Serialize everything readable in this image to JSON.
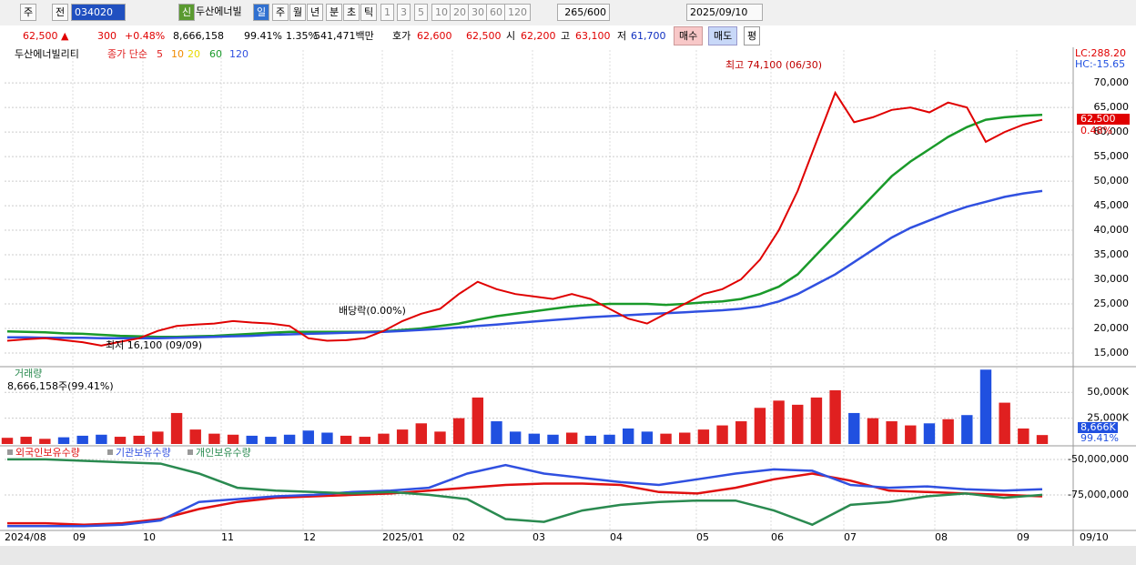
{
  "toolbar": [
    "주",
    "전",
    "034020",
    "신",
    "두산에너빌",
    "일",
    "주",
    "월",
    "년",
    "분",
    "초",
    "틱",
    "1",
    "3",
    "5",
    "10",
    "20",
    "30",
    "60",
    "120",
    "265/600",
    "2025/09/10"
  ],
  "infobar": [
    "62,500 ▲",
    "300",
    "+0.48%",
    "8,666,158",
    "99.41%",
    "1.35%",
    "541,471백만",
    "호가",
    "62,600",
    "62,500",
    "시",
    "62,200",
    "고",
    "63,100",
    "저",
    "61,700",
    "매수",
    "매도",
    "평"
  ],
  "x_labels": [
    "2024/08",
    "09",
    "10",
    "11",
    "12",
    "2025/01",
    "02",
    "03",
    "04",
    "05",
    "06",
    "07",
    "08",
    "09",
    "09/10"
  ],
  "chart_data": [
    {
      "type": "line",
      "name": "두산에너빌리티",
      "legend_label": "종가 단순",
      "ma_legend": [
        "5",
        "10",
        "20"
      ],
      "ma_legend_colors": [
        "#e02020",
        "#f08a00",
        "#e8d800"
      ],
      "annotations": [
        "최고 74,100 (06/30)",
        "최저 16,100 (09/09)",
        "배당락(0.00%)"
      ],
      "right_labels": [
        "LC:288.20",
        "HC:-15.65",
        "62,500",
        "0.48%"
      ],
      "color": "#e00000",
      "values": [
        17500,
        17800,
        18000,
        17600,
        17200,
        16500,
        17300,
        18000,
        19500,
        20500,
        20800,
        21000,
        21500,
        21200,
        21000,
        20500,
        18000,
        17500,
        17600,
        18000,
        19500,
        21500,
        23000,
        24000,
        27000,
        29500,
        28000,
        27000,
        26500,
        26000,
        27000,
        26000,
        24000,
        22000,
        21000,
        23000,
        25000,
        27000,
        28000,
        30000,
        34000,
        40000,
        48000,
        58000,
        68000,
        62000,
        63000,
        64500,
        65000,
        64000,
        66000,
        65000,
        58000,
        60000,
        61500,
        62500
      ],
      "series": [
        {
          "name": "60",
          "color": "#1a9a2a",
          "values": [
            19400,
            19300,
            19200,
            19000,
            18900,
            18700,
            18500,
            18400,
            18300,
            18300,
            18400,
            18500,
            18700,
            18900,
            19100,
            19300,
            19300,
            19300,
            19300,
            19300,
            19400,
            19700,
            20000,
            20500,
            21000,
            21800,
            22500,
            23000,
            23500,
            24000,
            24500,
            24800,
            25000,
            25000,
            25000,
            24800,
            25000,
            25300,
            25500,
            26000,
            27000,
            28500,
            31000,
            35000,
            39000,
            43000,
            47000,
            51000,
            54000,
            56500,
            59000,
            61000,
            62500,
            63000,
            63300,
            63500
          ]
        },
        {
          "name": "120",
          "color": "#3050e0",
          "values": [
            18200,
            18200,
            18100,
            18100,
            18100,
            18000,
            18000,
            18000,
            18000,
            18100,
            18200,
            18300,
            18400,
            18500,
            18700,
            18800,
            18900,
            19000,
            19100,
            19200,
            19300,
            19500,
            19700,
            19900,
            20200,
            20500,
            20800,
            21100,
            21400,
            21700,
            22000,
            22300,
            22500,
            22700,
            22900,
            23100,
            23300,
            23500,
            23700,
            24000,
            24500,
            25500,
            27000,
            29000,
            31000,
            33500,
            36000,
            38500,
            40500,
            42000,
            43500,
            44800,
            45800,
            46800,
            47500,
            48000
          ]
        }
      ],
      "ylim": [
        12400,
        76700
      ],
      "yticks": [
        {
          "value": 15000,
          "label": "15,000"
        },
        {
          "value": 20000,
          "label": "20,000"
        },
        {
          "value": 25000,
          "label": "25,000"
        },
        {
          "value": 30000,
          "label": "30,000"
        },
        {
          "value": 35000,
          "label": "35,000"
        },
        {
          "value": 40000,
          "label": "40,000"
        },
        {
          "value": 45000,
          "label": "45,000"
        },
        {
          "value": 50000,
          "label": "50,000"
        },
        {
          "value": 55000,
          "label": "55,000"
        },
        {
          "value": 60000,
          "label": "60,000"
        },
        {
          "value": 65000,
          "label": "65,000"
        },
        {
          "value": 70000,
          "label": "70,000"
        }
      ],
      "grid": true
    },
    {
      "type": "bar",
      "name": "거래량",
      "subtitle": "8,666,158주(99.41%)",
      "right_labels": [
        "8,666K",
        "99.41%"
      ],
      "up_color": "#e02020",
      "down_color": "#2050e0",
      "values": [
        6000,
        7000,
        5000,
        6500,
        8000,
        9000,
        7000,
        8000,
        12000,
        30000,
        14000,
        10000,
        9000,
        8000,
        7000,
        9000,
        13000,
        11000,
        8000,
        7000,
        10000,
        14000,
        20000,
        12000,
        25000,
        45000,
        22000,
        12000,
        10000,
        9000,
        11000,
        8000,
        9000,
        15000,
        12000,
        10000,
        11000,
        14000,
        18000,
        22000,
        35000,
        42000,
        38000,
        45000,
        52000,
        30000,
        25000,
        22000,
        18000,
        20000,
        24000,
        28000,
        72000,
        40000,
        15000,
        8666
      ],
      "ylim": [
        0,
        74000
      ],
      "yticks": [
        {
          "value": 25000,
          "label": "25,000K"
        },
        {
          "value": 50000,
          "label": "50,000K"
        }
      ],
      "grid": true
    },
    {
      "type": "line",
      "series": [
        {
          "name": "외국인보유수량",
          "color": "#e01010",
          "values": [
            -95000000,
            -95000000,
            -96000000,
            -95000000,
            -92000000,
            -85000000,
            -80000000,
            -77000000,
            -76000000,
            -75000000,
            -74000000,
            -72000000,
            -70000000,
            -68000000,
            -67000000,
            -67000000,
            -68000000,
            -73000000,
            -74000000,
            -70000000,
            -64000000,
            -60000000,
            -65000000,
            -72000000,
            -73000000,
            -74000000,
            -75000000,
            -76000000
          ]
        },
        {
          "name": "기관보유수량",
          "color": "#3050e0",
          "values": [
            -97000000,
            -97000000,
            -97000000,
            -96000000,
            -93000000,
            -80000000,
            -78000000,
            -76000000,
            -75000000,
            -73000000,
            -72000000,
            -70000000,
            -60000000,
            -54000000,
            -60000000,
            -63000000,
            -66000000,
            -68000000,
            -64000000,
            -60000000,
            -57000000,
            -58000000,
            -68000000,
            -70000000,
            -69000000,
            -71000000,
            -72000000,
            -71000000
          ]
        },
        {
          "name": "개인보유수량",
          "color": "#2a8a50",
          "values": [
            -50000000,
            -50000000,
            -51000000,
            -52000000,
            -53000000,
            -60000000,
            -70000000,
            -72000000,
            -73000000,
            -74000000,
            -73000000,
            -75000000,
            -78000000,
            -92000000,
            -94000000,
            -86000000,
            -82000000,
            -80000000,
            -79000000,
            -79000000,
            -86000000,
            -96000000,
            -82000000,
            -80000000,
            -76000000,
            -74000000,
            -77000000,
            -75000000
          ]
        }
      ],
      "ylim": [
        -99400000,
        -41700000
      ],
      "yticks": [
        {
          "value": -75000000,
          "label": "-75,000,000"
        },
        {
          "value": -50000000,
          "label": "-50,000,000"
        }
      ],
      "grid": true
    }
  ]
}
